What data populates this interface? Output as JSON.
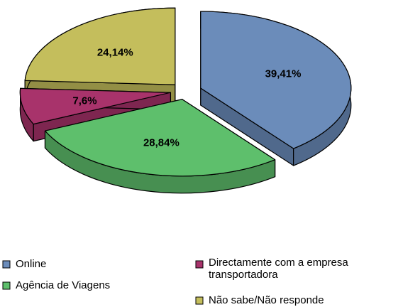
{
  "chart_data": {
    "type": "pie",
    "categories": [
      "Online",
      "Agência de Viagens",
      "Directamente com a empresa transportadora",
      "Não sabe/Não responde"
    ],
    "values": [
      39.41,
      28.84,
      7.6,
      24.14
    ],
    "value_labels": [
      "39,41%",
      "28,84%",
      "7,6%",
      "24,14%"
    ],
    "colors": [
      "#6b8cba",
      "#5ebf6c",
      "#a8336b",
      "#c4be5c"
    ]
  }
}
